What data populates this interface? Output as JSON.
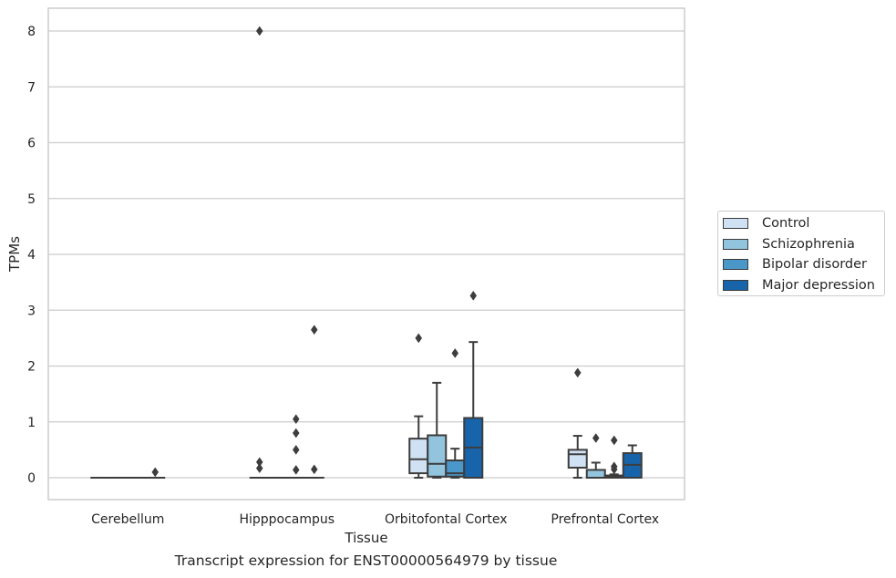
{
  "chart_data": {
    "type": "box",
    "title": "",
    "caption": "Transcript expression for ENST00000564979 by tissue",
    "xlabel": "Tissue",
    "ylabel": "TPMs",
    "ylim": [
      -0.4,
      8.4
    ],
    "yticks": [
      0,
      1,
      2,
      3,
      4,
      5,
      6,
      7,
      8
    ],
    "grid": "horizontal",
    "legend_position": "right-center",
    "categories": [
      "Cerebellum",
      "Hipppocampus",
      "Orbitofontal Cortex",
      "Prefrontal Cortex"
    ],
    "series": [
      {
        "name": "Control",
        "color": "#cfe1f2",
        "boxes": [
          {
            "q1": 0,
            "median": 0,
            "q3": 0,
            "whisker_low": 0,
            "whisker_high": 0,
            "outliers": []
          },
          {
            "q1": 0,
            "median": 0,
            "q3": 0,
            "whisker_low": 0,
            "whisker_high": 0,
            "outliers": [
              0.28,
              0.17,
              8.0
            ]
          },
          {
            "q1": 0.08,
            "median": 0.33,
            "q3": 0.7,
            "whisker_low": 0,
            "whisker_high": 1.1,
            "outliers": [
              2.5
            ]
          },
          {
            "q1": 0.18,
            "median": 0.42,
            "q3": 0.5,
            "whisker_low": 0,
            "whisker_high": 0.75,
            "outliers": [
              1.88
            ]
          }
        ]
      },
      {
        "name": "Schizophrenia",
        "color": "#93c4de",
        "boxes": [
          {
            "q1": 0,
            "median": 0,
            "q3": 0,
            "whisker_low": 0,
            "whisker_high": 0,
            "outliers": []
          },
          {
            "q1": 0,
            "median": 0,
            "q3": 0,
            "whisker_low": 0,
            "whisker_high": 0,
            "outliers": []
          },
          {
            "q1": 0.02,
            "median": 0.25,
            "q3": 0.76,
            "whisker_low": 0,
            "whisker_high": 1.7,
            "outliers": []
          },
          {
            "q1": 0,
            "median": 0,
            "q3": 0.14,
            "whisker_low": 0,
            "whisker_high": 0.27,
            "outliers": [
              0.71
            ]
          }
        ]
      },
      {
        "name": "Bipolar disorder",
        "color": "#4a98c9",
        "boxes": [
          {
            "q1": 0,
            "median": 0,
            "q3": 0,
            "whisker_low": 0,
            "whisker_high": 0,
            "outliers": []
          },
          {
            "q1": 0,
            "median": 0,
            "q3": 0,
            "whisker_low": 0,
            "whisker_high": 0,
            "outliers": [
              1.05,
              0.8,
              0.5,
              0.14
            ]
          },
          {
            "q1": 0.02,
            "median": 0.08,
            "q3": 0.31,
            "whisker_low": 0,
            "whisker_high": 0.52,
            "outliers": [
              2.23
            ]
          },
          {
            "q1": 0,
            "median": 0.02,
            "q3": 0.04,
            "whisker_low": 0,
            "whisker_high": 0.06,
            "outliers": [
              0.67,
              0.2,
              0.15
            ]
          }
        ]
      },
      {
        "name": "Major depression",
        "color": "#1764ab",
        "boxes": [
          {
            "q1": 0,
            "median": 0,
            "q3": 0,
            "whisker_low": 0,
            "whisker_high": 0,
            "outliers": [
              0.1
            ]
          },
          {
            "q1": 0,
            "median": 0,
            "q3": 0,
            "whisker_low": 0,
            "whisker_high": 0,
            "outliers": [
              2.65,
              0.15
            ]
          },
          {
            "q1": 0,
            "median": 0.54,
            "q3": 1.07,
            "whisker_low": 0,
            "whisker_high": 2.43,
            "outliers": [
              3.26
            ]
          },
          {
            "q1": 0,
            "median": 0.23,
            "q3": 0.44,
            "whisker_low": 0,
            "whisker_high": 0.58,
            "outliers": []
          }
        ]
      }
    ]
  }
}
